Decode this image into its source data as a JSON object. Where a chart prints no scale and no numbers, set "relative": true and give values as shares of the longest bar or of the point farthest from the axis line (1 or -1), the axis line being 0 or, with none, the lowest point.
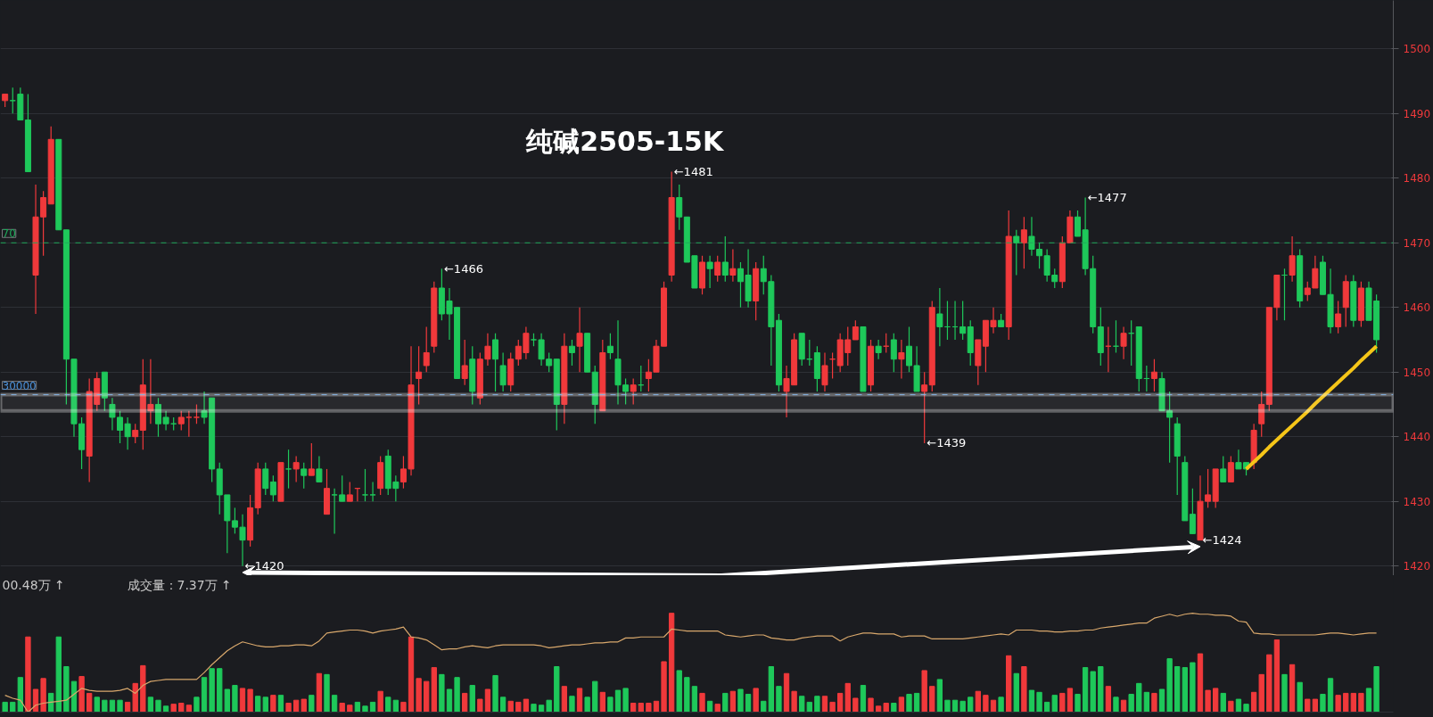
{
  "chart_data": [
    {
      "type": "candlestick",
      "title": "纯碱2505-15K",
      "categories": [
        null,
        null,
        null,
        null,
        null,
        null,
        null,
        null,
        null,
        null,
        null,
        null,
        null,
        null,
        null,
        null,
        null,
        null,
        null,
        null,
        null,
        null,
        null,
        null,
        null,
        null,
        null,
        null,
        null,
        null,
        null,
        null,
        null,
        null,
        null,
        null,
        null,
        null,
        null,
        null,
        null,
        null,
        null,
        null,
        null,
        null,
        null,
        null,
        null,
        null,
        null,
        null,
        null,
        null,
        null,
        null,
        null,
        null,
        null,
        null,
        null,
        null,
        null,
        null,
        null,
        null,
        null,
        null,
        null,
        null,
        null,
        null,
        null,
        null,
        null,
        null,
        null,
        null,
        null,
        null,
        null,
        null,
        null,
        null,
        null,
        null,
        null,
        null,
        null,
        null,
        null,
        null,
        null,
        null,
        null,
        null,
        null,
        null,
        null,
        null,
        null,
        null,
        null,
        null,
        null,
        null,
        null,
        null,
        null,
        null,
        null,
        null,
        null,
        null,
        null,
        null,
        null,
        null,
        null,
        null,
        null,
        null,
        null,
        null,
        null,
        null,
        null,
        null,
        null,
        null,
        null,
        null,
        null,
        null,
        null,
        null,
        null,
        null,
        null,
        null,
        null,
        null,
        null,
        null,
        null,
        null,
        null,
        null,
        null,
        null,
        null,
        null,
        null,
        null,
        null,
        null,
        null,
        null,
        null,
        null,
        null,
        null,
        null,
        null,
        null,
        null,
        null,
        null,
        null,
        null,
        null,
        null,
        null,
        null,
        null,
        null,
        null,
        null,
        null,
        null
      ],
      "ohlc": [
        [
          1492,
          1493,
          1491,
          1493
        ],
        [
          1492,
          1494,
          1490,
          1492
        ],
        [
          1493,
          1494,
          1489,
          1489
        ],
        [
          1489,
          1493,
          1481,
          1481
        ],
        [
          1465,
          1479,
          1459,
          1474
        ],
        [
          1474,
          1478,
          1468,
          1477
        ],
        [
          1476,
          1488,
          1476,
          1486
        ],
        [
          1486,
          1486,
          1472,
          1472
        ],
        [
          1472,
          1472,
          1445,
          1452
        ],
        [
          1452,
          1452,
          1440,
          1442
        ],
        [
          1442,
          1443,
          1435,
          1438
        ],
        [
          1437,
          1449,
          1433,
          1447
        ],
        [
          1445,
          1450,
          1444,
          1449
        ],
        [
          1450,
          1450,
          1444,
          1446
        ],
        [
          1445,
          1446,
          1441,
          1443
        ],
        [
          1443,
          1444,
          1439,
          1441
        ],
        [
          1442,
          1443,
          1438,
          1440
        ],
        [
          1440,
          1442,
          1439,
          1441
        ],
        [
          1441,
          1452,
          1438,
          1448
        ],
        [
          1444,
          1452,
          1442,
          1445
        ],
        [
          1445,
          1446,
          1440,
          1442
        ],
        [
          1443,
          1444,
          1441,
          1442
        ],
        [
          1442,
          1443,
          1441,
          1442
        ],
        [
          1442,
          1444,
          1441,
          1443
        ],
        [
          1443,
          1444,
          1440,
          1443
        ],
        [
          1443,
          1445,
          1442,
          1443
        ],
        [
          1444,
          1447,
          1442,
          1443
        ],
        [
          1446,
          1446,
          1433,
          1435
        ],
        [
          1435,
          1436,
          1428,
          1431
        ],
        [
          1431,
          1431,
          1422,
          1427
        ],
        [
          1427,
          1429,
          1425,
          1426
        ],
        [
          1426,
          1428,
          1420,
          1424
        ],
        [
          1424,
          1431,
          1423,
          1429
        ],
        [
          1429,
          1436,
          1428,
          1435
        ],
        [
          1435,
          1436,
          1431,
          1432
        ],
        [
          1433,
          1434,
          1430,
          1431
        ],
        [
          1430,
          1436,
          1430,
          1436
        ],
        [
          1435,
          1438,
          1432,
          1435
        ],
        [
          1435,
          1437,
          1433,
          1436
        ],
        [
          1435,
          1436,
          1432,
          1434
        ],
        [
          1434,
          1439,
          1434,
          1435
        ],
        [
          1435,
          1437,
          1433,
          1433
        ],
        [
          1428,
          1435,
          1428,
          1432
        ],
        [
          1431,
          1432,
          1425,
          1431
        ],
        [
          1431,
          1434,
          1430,
          1430
        ],
        [
          1430,
          1433,
          1430,
          1431
        ],
        [
          1432,
          1432,
          1430,
          1432
        ],
        [
          1431,
          1435,
          1430,
          1431
        ],
        [
          1431,
          1433,
          1430,
          1431
        ],
        [
          1432,
          1437,
          1431,
          1436
        ],
        [
          1437,
          1438,
          1431,
          1432
        ],
        [
          1433,
          1434,
          1430,
          1432
        ],
        [
          1433,
          1437,
          1432,
          1435
        ],
        [
          1435,
          1454,
          1434,
          1448
        ],
        [
          1449,
          1454,
          1445,
          1450
        ],
        [
          1451,
          1457,
          1450,
          1453
        ],
        [
          1454,
          1464,
          1453,
          1463
        ],
        [
          1463,
          1466,
          1458,
          1459
        ],
        [
          1461,
          1463,
          1455,
          1459
        ],
        [
          1460,
          1460,
          1449,
          1449
        ],
        [
          1449,
          1455,
          1448,
          1451
        ],
        [
          1452,
          1454,
          1445,
          1447
        ],
        [
          1446,
          1453,
          1445,
          1452
        ],
        [
          1452,
          1456,
          1451,
          1454
        ],
        [
          1455,
          1456,
          1447,
          1452
        ],
        [
          1451,
          1453,
          1447,
          1448
        ],
        [
          1448,
          1453,
          1447,
          1452
        ],
        [
          1452,
          1455,
          1451,
          1454
        ],
        [
          1453,
          1457,
          1452,
          1456
        ],
        [
          1455,
          1456,
          1454,
          1455
        ],
        [
          1455,
          1456,
          1451,
          1452
        ],
        [
          1452,
          1453,
          1450,
          1451
        ],
        [
          1452,
          1452,
          1441,
          1445
        ],
        [
          1445,
          1456,
          1442,
          1454
        ],
        [
          1454,
          1455,
          1451,
          1453
        ],
        [
          1454,
          1460,
          1450,
          1456
        ],
        [
          1456,
          1456,
          1450,
          1450
        ],
        [
          1450,
          1451,
          1442,
          1445
        ],
        [
          1444,
          1455,
          1444,
          1453
        ],
        [
          1454,
          1456,
          1452,
          1453
        ],
        [
          1452,
          1458,
          1445,
          1448
        ],
        [
          1448,
          1449,
          1445,
          1447
        ],
        [
          1447,
          1449,
          1445,
          1448
        ],
        [
          1448,
          1451,
          1447,
          1448
        ],
        [
          1449,
          1452,
          1447,
          1450
        ],
        [
          1450,
          1455,
          1450,
          1454
        ],
        [
          1454,
          1464,
          1454,
          1463
        ],
        [
          1465,
          1481,
          1464,
          1477
        ],
        [
          1477,
          1479,
          1472,
          1474
        ],
        [
          1474,
          1474,
          1467,
          1467
        ],
        [
          1468,
          1468,
          1463,
          1463
        ],
        [
          1463,
          1468,
          1462,
          1467
        ],
        [
          1467,
          1468,
          1463,
          1466
        ],
        [
          1465,
          1468,
          1464,
          1467
        ],
        [
          1467,
          1471,
          1464,
          1465
        ],
        [
          1465,
          1469,
          1464,
          1466
        ],
        [
          1466,
          1467,
          1460,
          1464
        ],
        [
          1465,
          1469,
          1460,
          1461
        ],
        [
          1461,
          1467,
          1458,
          1466
        ],
        [
          1466,
          1468,
          1462,
          1464
        ],
        [
          1464,
          1465,
          1451,
          1457
        ],
        [
          1458,
          1459,
          1447,
          1448
        ],
        [
          1447,
          1451,
          1443,
          1449
        ],
        [
          1448,
          1456,
          1448,
          1455
        ],
        [
          1456,
          1456,
          1451,
          1452
        ],
        [
          1452,
          1455,
          1451,
          1452
        ],
        [
          1453,
          1454,
          1447,
          1449
        ],
        [
          1448,
          1453,
          1447,
          1451
        ],
        [
          1452,
          1453,
          1449,
          1452
        ],
        [
          1451,
          1456,
          1450,
          1455
        ],
        [
          1453,
          1457,
          1451,
          1455
        ],
        [
          1455,
          1458,
          1455,
          1457
        ],
        [
          1457,
          1457,
          1447,
          1447
        ],
        [
          1448,
          1455,
          1447,
          1454
        ],
        [
          1454,
          1455,
          1452,
          1453
        ],
        [
          1454,
          1456,
          1453,
          1454
        ],
        [
          1455,
          1456,
          1450,
          1452
        ],
        [
          1452,
          1455,
          1449,
          1453
        ],
        [
          1454,
          1457,
          1450,
          1451
        ],
        [
          1451,
          1454,
          1447,
          1447
        ],
        [
          1447,
          1450,
          1439,
          1448
        ],
        [
          1448,
          1461,
          1447,
          1460
        ],
        [
          1459,
          1463,
          1454,
          1457
        ],
        [
          1457,
          1461,
          1455,
          1457
        ],
        [
          1457,
          1461,
          1455,
          1457
        ],
        [
          1457,
          1461,
          1455,
          1456
        ],
        [
          1457,
          1458,
          1451,
          1453
        ],
        [
          1451,
          1455,
          1448,
          1455
        ],
        [
          1454,
          1458,
          1450,
          1458
        ],
        [
          1457,
          1460,
          1456,
          1458
        ],
        [
          1458,
          1459,
          1457,
          1457
        ],
        [
          1457,
          1475,
          1455,
          1471
        ],
        [
          1471,
          1472,
          1465,
          1470
        ],
        [
          1470,
          1474,
          1466,
          1472
        ],
        [
          1471,
          1474,
          1468,
          1469
        ],
        [
          1469,
          1470,
          1466,
          1468
        ],
        [
          1468,
          1469,
          1464,
          1465
        ],
        [
          1465,
          1466,
          1463,
          1464
        ],
        [
          1464,
          1471,
          1463,
          1470
        ],
        [
          1470,
          1475,
          1470,
          1474
        ],
        [
          1474,
          1475,
          1471,
          1471
        ],
        [
          1472,
          1477,
          1465,
          1466
        ],
        [
          1466,
          1468,
          1456,
          1457
        ],
        [
          1457,
          1460,
          1451,
          1453
        ],
        [
          1454,
          1457,
          1450,
          1454
        ],
        [
          1454,
          1458,
          1453,
          1454
        ],
        [
          1454,
          1457,
          1452,
          1456
        ],
        [
          1456,
          1458,
          1451,
          1456
        ],
        [
          1457,
          1457,
          1447,
          1449
        ],
        [
          1449,
          1451,
          1447,
          1449
        ],
        [
          1449,
          1452,
          1447,
          1450
        ],
        [
          1449,
          1450,
          1444,
          1444
        ],
        [
          1444,
          1447,
          1436,
          1443
        ],
        [
          1442,
          1443,
          1431,
          1437
        ],
        [
          1436,
          1437,
          1427,
          1427
        ],
        [
          1428,
          1432,
          1425,
          1425
        ],
        [
          1424,
          1434,
          1424,
          1430
        ],
        [
          1430,
          1435,
          1429,
          1431
        ],
        [
          1430,
          1435,
          1429,
          1435
        ],
        [
          1435,
          1437,
          1433,
          1433
        ],
        [
          1433,
          1437,
          1433,
          1436
        ],
        [
          1436,
          1438,
          1435,
          1435
        ],
        [
          1436,
          1436,
          1434,
          1435
        ],
        [
          1436,
          1442,
          1435,
          1441
        ],
        [
          1442,
          1447,
          1440,
          1445
        ],
        [
          1445,
          1460,
          1444,
          1460
        ],
        [
          1460,
          1465,
          1458,
          1465
        ],
        [
          1465,
          1466,
          1458,
          1465
        ],
        [
          1465,
          1471,
          1464,
          1468
        ],
        [
          1468,
          1469,
          1460,
          1461
        ],
        [
          1462,
          1464,
          1461,
          1463
        ],
        [
          1463,
          1468,
          1463,
          1466
        ],
        [
          1467,
          1468,
          1462,
          1462
        ],
        [
          1462,
          1466,
          1456,
          1457
        ],
        [
          1457,
          1461,
          1456,
          1459
        ],
        [
          1460,
          1465,
          1457,
          1464
        ],
        [
          1464,
          1465,
          1457,
          1458
        ],
        [
          1458,
          1464,
          1457,
          1463
        ],
        [
          1463,
          1464,
          1458,
          1458
        ],
        [
          1461,
          1462,
          1453,
          1455
        ]
      ],
      "colors": [
        "#f0393b",
        "#1ec85a",
        "#1ec85a",
        "#1ec85a",
        "#f0393b",
        "#f0393b",
        "#f0393b",
        "#1ec85a",
        "#1ec85a",
        "#1ec85a",
        "#1ec85a",
        "#f0393b",
        "#f0393b",
        "#1ec85a",
        "#1ec85a",
        "#1ec85a",
        "#1ec85a",
        "#f0393b",
        "#f0393b",
        "#f0393b",
        "#1ec85a",
        "#1ec85a",
        "#1ec85a",
        "#f0393b",
        "#f0393b",
        "#f0393b",
        "#1ec85a",
        "#1ec85a",
        "#1ec85a",
        "#1ec85a",
        "#1ec85a",
        "#1ec85a",
        "#f0393b",
        "#f0393b",
        "#1ec85a",
        "#1ec85a",
        "#f0393b",
        "#1ec85a",
        "#f0393b",
        "#1ec85a",
        "#f0393b",
        "#1ec85a",
        "#f0393b",
        "#1ec85a",
        "#1ec85a",
        "#f0393b",
        "#f0393b",
        "#1ec85a",
        "#1ec85a",
        "#f0393b",
        "#1ec85a",
        "#1ec85a",
        "#f0393b",
        "#f0393b",
        "#f0393b",
        "#f0393b",
        "#f0393b",
        "#1ec85a",
        "#1ec85a",
        "#1ec85a",
        "#f0393b",
        "#1ec85a",
        "#f0393b",
        "#f0393b",
        "#1ec85a",
        "#1ec85a",
        "#f0393b",
        "#f0393b",
        "#f0393b",
        "#1ec85a",
        "#1ec85a",
        "#1ec85a",
        "#1ec85a",
        "#f0393b",
        "#1ec85a",
        "#f0393b",
        "#1ec85a",
        "#1ec85a",
        "#f0393b",
        "#1ec85a",
        "#1ec85a",
        "#1ec85a",
        "#f0393b",
        "#1ec85a",
        "#f0393b",
        "#f0393b",
        "#f0393b",
        "#f0393b",
        "#1ec85a",
        "#1ec85a",
        "#1ec85a",
        "#f0393b",
        "#1ec85a",
        "#f0393b",
        "#1ec85a",
        "#f0393b",
        "#1ec85a",
        "#1ec85a",
        "#f0393b",
        "#1ec85a",
        "#1ec85a",
        "#1ec85a",
        "#f0393b",
        "#f0393b",
        "#1ec85a",
        "#1ec85a",
        "#1ec85a",
        "#f0393b",
        "#f0393b",
        "#f0393b",
        "#f0393b",
        "#f0393b",
        "#1ec85a",
        "#f0393b",
        "#1ec85a",
        "#f0393b",
        "#1ec85a",
        "#f0393b",
        "#1ec85a",
        "#1ec85a",
        "#f0393b",
        "#f0393b",
        "#1ec85a",
        "#1ec85a",
        "#1ec85a",
        "#1ec85a",
        "#1ec85a",
        "#f0393b",
        "#f0393b",
        "#f0393b",
        "#1ec85a",
        "#f0393b",
        "#1ec85a",
        "#f0393b",
        "#1ec85a",
        "#1ec85a",
        "#1ec85a",
        "#1ec85a",
        "#f0393b",
        "#f0393b",
        "#1ec85a",
        "#1ec85a",
        "#1ec85a",
        "#1ec85a",
        "#f0393b",
        "#1ec85a",
        "#f0393b",
        "#1ec85a",
        "#1ec85a",
        "#1ec85a",
        "#f0393b",
        "#1ec85a",
        "#1ec85a",
        "#1ec85a",
        "#1ec85a",
        "#1ec85a",
        "#f0393b",
        "#f0393b",
        "#f0393b",
        "#1ec85a",
        "#f0393b",
        "#1ec85a",
        "#1ec85a",
        "#f0393b",
        "#f0393b",
        "#f0393b",
        "#f0393b",
        "#1ec85a",
        "#f0393b",
        "#1ec85a",
        "#f0393b",
        "#f0393b",
        "#1ec85a",
        "#1ec85a",
        "#f0393b",
        "#f0393b",
        "#1ec85a",
        "#f0393b",
        "#1ec85a",
        "#1ec85a"
      ],
      "series": [
        {
          "type": "line",
          "color": "#f5c518",
          "values": [
            null,
            null,
            null,
            null,
            null,
            null,
            null,
            null,
            null,
            null,
            null,
            null,
            null,
            null,
            null,
            null,
            null,
            null,
            null,
            null,
            null,
            null,
            null,
            null,
            null,
            null,
            null,
            null,
            null,
            null,
            null,
            null,
            null,
            null,
            null,
            null,
            null,
            null,
            null,
            null,
            null,
            null,
            null,
            null,
            null,
            null,
            null,
            null,
            null,
            null,
            null,
            null,
            null,
            null,
            null,
            null,
            null,
            null,
            null,
            null,
            null,
            null,
            null,
            null,
            null,
            null,
            null,
            null,
            null,
            null,
            null,
            null,
            null,
            null,
            null,
            null,
            null,
            null,
            null,
            null,
            null,
            null,
            null,
            null,
            null,
            null,
            null,
            null,
            null,
            null,
            null,
            null,
            null,
            null,
            null,
            null,
            null,
            null,
            null,
            null,
            null,
            null,
            null,
            null,
            null,
            null,
            null,
            null,
            null,
            null,
            null,
            null,
            null,
            null,
            null,
            null,
            null,
            null,
            null,
            null,
            null,
            null,
            null,
            null,
            null,
            null,
            null,
            null,
            null,
            null,
            null,
            null,
            null,
            null,
            null,
            null,
            null,
            null,
            null,
            null,
            null,
            null,
            null,
            null,
            null,
            null,
            null,
            null,
            null,
            null,
            null,
            null,
            null,
            null,
            null,
            null,
            null,
            null,
            null,
            null,
            null,
            null,
            1435,
            1436.1,
            1437.2,
            1438.4,
            1439.5,
            1440.6,
            1441.7,
            1442.8,
            1443.9,
            1445.1,
            1446.2,
            1447.3,
            1448.4,
            1449.5,
            1450.6,
            1451.8,
            1452.9,
            1454
          ]
        }
      ],
      "ylim": [
        1418.5,
        1507.5
      ],
      "yticks": [
        1420,
        1430,
        1440,
        1450,
        1460,
        1470,
        1480,
        1490,
        1500
      ],
      "grid": "y",
      "tick_labels": "y",
      "ref_lines": [
        {
          "axis": "y",
          "value": 1470,
          "color": "#1ea85a",
          "line_style": "dashed"
        },
        {
          "axis": "y",
          "value": 1446.5,
          "color": "#4a90d9",
          "line_style": "dashed"
        }
      ],
      "bands": [
        {
          "axis": "y",
          "from": 1444,
          "to": 1446.5,
          "color": "#ffffff"
        }
      ],
      "annotations": [
        "70",
        "30000",
        "←1481",
        "←1466",
        "←1477",
        "←1439",
        "←1424",
        "←1420"
      ]
    },
    {
      "type": "bar",
      "relative": true,
      "tick_labels": false,
      "categories": [
        null,
        null,
        null,
        null,
        null,
        null,
        null,
        null,
        null,
        null,
        null,
        null,
        null,
        null,
        null,
        null,
        null,
        null,
        null,
        null,
        null,
        null,
        null,
        null,
        null,
        null,
        null,
        null,
        null,
        null,
        null,
        null,
        null,
        null,
        null,
        null,
        null,
        null,
        null,
        null,
        null,
        null,
        null,
        null,
        null,
        null,
        null,
        null,
        null,
        null,
        null,
        null,
        null,
        null,
        null,
        null,
        null,
        null,
        null,
        null,
        null,
        null,
        null,
        null,
        null,
        null,
        null,
        null,
        null,
        null,
        null,
        null,
        null,
        null,
        null,
        null,
        null,
        null,
        null,
        null,
        null,
        null,
        null,
        null,
        null,
        null,
        null,
        null,
        null,
        null,
        null,
        null,
        null,
        null,
        null,
        null,
        null,
        null,
        null,
        null,
        null,
        null,
        null,
        null,
        null,
        null,
        null,
        null,
        null,
        null,
        null,
        null,
        null,
        null,
        null,
        null,
        null,
        null,
        null,
        null,
        null,
        null,
        null,
        null,
        null,
        null,
        null,
        null,
        null,
        null,
        null,
        null,
        null,
        null,
        null,
        null,
        null,
        null,
        null,
        null,
        null,
        null,
        null,
        null,
        null,
        null,
        null,
        null,
        null,
        null,
        null,
        null,
        null,
        null,
        null,
        null,
        null,
        null,
        null,
        null,
        null,
        null,
        null,
        null,
        null,
        null,
        null,
        null,
        null,
        null,
        null,
        null,
        null,
        null,
        null,
        null,
        null,
        null,
        null,
        null
      ],
      "series": [
        {
          "type": "bar",
          "values": [
            0.1,
            0.1,
            0.35,
            0.76,
            0.23,
            0.34,
            0.19,
            0.76,
            0.46,
            0.31,
            0.36,
            0.19,
            0.15,
            0.12,
            0.12,
            0.12,
            0.1,
            0.29,
            0.47,
            0.15,
            0.12,
            0.06,
            0.08,
            0.09,
            0.07,
            0.15,
            0.35,
            0.44,
            0.44,
            0.23,
            0.27,
            0.24,
            0.23,
            0.16,
            0.15,
            0.17,
            0.17,
            0.09,
            0.12,
            0.13,
            0.17,
            0.39,
            0.38,
            0.17,
            0.09,
            0.07,
            0.1,
            0.06,
            0.1,
            0.21,
            0.15,
            0.12,
            0.1,
            0.76,
            0.34,
            0.31,
            0.45,
            0.38,
            0.23,
            0.35,
            0.19,
            0.27,
            0.13,
            0.23,
            0.37,
            0.15,
            0.11,
            0.1,
            0.13,
            0.08,
            0.07,
            0.12,
            0.46,
            0.26,
            0.16,
            0.24,
            0.15,
            0.31,
            0.2,
            0.15,
            0.22,
            0.24,
            0.09,
            0.09,
            0.09,
            0.11,
            0.51,
            1.0,
            0.42,
            0.35,
            0.26,
            0.19,
            0.11,
            0.08,
            0.19,
            0.21,
            0.23,
            0.18,
            0.24,
            0.11,
            0.46,
            0.26,
            0.39,
            0.21,
            0.16,
            0.1,
            0.16,
            0.16,
            0.1,
            0.19,
            0.29,
            0.14,
            0.27,
            0.14,
            0.06,
            0.09,
            0.09,
            0.15,
            0.18,
            0.19,
            0.42,
            0.26,
            0.33,
            0.12,
            0.12,
            0.11,
            0.15,
            0.21,
            0.17,
            0.12,
            0.15,
            0.57,
            0.39,
            0.46,
            0.22,
            0.2,
            0.1,
            0.17,
            0.19,
            0.24,
            0.18,
            0.45,
            0.41,
            0.46,
            0.26,
            0.15,
            0.12,
            0.18,
            0.29,
            0.2,
            0.19,
            0.23,
            0.54,
            0.46,
            0.45,
            0.5,
            0.59,
            0.22,
            0.24,
            0.19,
            0.11,
            0.13,
            0.08,
            0.2,
            0.38,
            0.58,
            0.73,
            0.38,
            0.48,
            0.3,
            0.13,
            0.13,
            0.18,
            0.34,
            0.17,
            0.19,
            0.19,
            0.19,
            0.24,
            0.46
          ],
          "colors": [
            "#1ec85a",
            "#1ec85a",
            "#1ec85a",
            "#f0393b",
            "#f0393b",
            "#f0393b",
            "#1ec85a",
            "#1ec85a",
            "#1ec85a",
            "#1ec85a",
            "#f0393b",
            "#f0393b",
            "#1ec85a",
            "#1ec85a",
            "#1ec85a",
            "#1ec85a",
            "#f0393b",
            "#f0393b",
            "#f0393b",
            "#1ec85a",
            "#1ec85a",
            "#1ec85a",
            "#f0393b",
            "#f0393b",
            "#f0393b",
            "#1ec85a",
            "#1ec85a",
            "#1ec85a",
            "#1ec85a",
            "#1ec85a",
            "#1ec85a",
            "#f0393b",
            "#f0393b",
            "#1ec85a",
            "#1ec85a",
            "#f0393b",
            "#1ec85a",
            "#f0393b",
            "#f0393b",
            "#f0393b",
            "#1ec85a",
            "#f0393b",
            "#1ec85a",
            "#1ec85a",
            "#f0393b",
            "#f0393b",
            "#1ec85a",
            "#1ec85a",
            "#1ec85a",
            "#f0393b",
            "#1ec85a",
            "#1ec85a",
            "#f0393b",
            "#f0393b",
            "#f0393b",
            "#f0393b",
            "#f0393b",
            "#1ec85a",
            "#1ec85a",
            "#1ec85a",
            "#f0393b",
            "#1ec85a",
            "#f0393b",
            "#f0393b",
            "#1ec85a",
            "#1ec85a",
            "#f0393b",
            "#f0393b",
            "#f0393b",
            "#1ec85a",
            "#1ec85a",
            "#1ec85a",
            "#1ec85a",
            "#f0393b",
            "#1ec85a",
            "#f0393b",
            "#1ec85a",
            "#1ec85a",
            "#f0393b",
            "#1ec85a",
            "#1ec85a",
            "#1ec85a",
            "#f0393b",
            "#f0393b",
            "#f0393b",
            "#f0393b",
            "#f0393b",
            "#f0393b",
            "#1ec85a",
            "#1ec85a",
            "#1ec85a",
            "#f0393b",
            "#1ec85a",
            "#f0393b",
            "#1ec85a",
            "#f0393b",
            "#1ec85a",
            "#1ec85a",
            "#f0393b",
            "#1ec85a",
            "#1ec85a",
            "#1ec85a",
            "#f0393b",
            "#f0393b",
            "#1ec85a",
            "#1ec85a",
            "#1ec85a",
            "#f0393b",
            "#f0393b",
            "#f0393b",
            "#f0393b",
            "#f0393b",
            "#1ec85a",
            "#f0393b",
            "#f0393b",
            "#f0393b",
            "#1ec85a",
            "#f0393b",
            "#1ec85a",
            "#1ec85a",
            "#f0393b",
            "#f0393b",
            "#1ec85a",
            "#1ec85a",
            "#1ec85a",
            "#1ec85a",
            "#1ec85a",
            "#f0393b",
            "#f0393b",
            "#f0393b",
            "#1ec85a",
            "#f0393b",
            "#1ec85a",
            "#f0393b",
            "#1ec85a",
            "#1ec85a",
            "#1ec85a",
            "#1ec85a",
            "#f0393b",
            "#f0393b",
            "#1ec85a",
            "#1ec85a",
            "#1ec85a",
            "#1ec85a",
            "#f0393b",
            "#1ec85a",
            "#f0393b",
            "#1ec85a",
            "#1ec85a",
            "#1ec85a",
            "#f0393b",
            "#1ec85a",
            "#1ec85a",
            "#1ec85a",
            "#1ec85a",
            "#1ec85a",
            "#f0393b",
            "#f0393b",
            "#f0393b",
            "#1ec85a",
            "#f0393b",
            "#1ec85a",
            "#1ec85a",
            "#f0393b",
            "#f0393b",
            "#f0393b",
            "#f0393b",
            "#1ec85a",
            "#f0393b",
            "#1ec85a",
            "#f0393b",
            "#f0393b",
            "#1ec85a",
            "#1ec85a",
            "#f0393b",
            "#f0393b",
            "#f0393b",
            "#f0393b",
            "#1ec85a",
            "#1ec85a"
          ]
        },
        {
          "type": "line",
          "color": "#d9a86c",
          "values": [
            0.17,
            0.14,
            0.12,
            0,
            0.07,
            0.09,
            0.1,
            0.11,
            0.12,
            0.18,
            0.24,
            0.22,
            0.21,
            0.21,
            0.21,
            0.22,
            0.24,
            0.19,
            0.27,
            0.31,
            0.32,
            0.33,
            0.33,
            0.33,
            0.33,
            0.33,
            0.4,
            0.48,
            0.55,
            0.62,
            0.67,
            0.71,
            0.69,
            0.67,
            0.66,
            0.66,
            0.67,
            0.67,
            0.68,
            0.68,
            0.67,
            0.72,
            0.8,
            0.81,
            0.82,
            0.83,
            0.83,
            0.82,
            0.8,
            0.82,
            0.83,
            0.84,
            0.86,
            0.76,
            0.75,
            0.73,
            0.68,
            0.63,
            0.64,
            0.64,
            0.66,
            0.67,
            0.66,
            0.65,
            0.67,
            0.68,
            0.68,
            0.68,
            0.68,
            0.68,
            0.67,
            0.65,
            0.66,
            0.67,
            0.68,
            0.68,
            0.69,
            0.7,
            0.7,
            0.71,
            0.71,
            0.75,
            0.75,
            0.76,
            0.76,
            0.76,
            0.76,
            0.84,
            0.83,
            0.82,
            0.82,
            0.82,
            0.82,
            0.82,
            0.78,
            0.77,
            0.76,
            0.77,
            0.78,
            0.78,
            0.75,
            0.74,
            0.73,
            0.73,
            0.75,
            0.76,
            0.77,
            0.77,
            0.77,
            0.72,
            0.76,
            0.78,
            0.8,
            0.8,
            0.79,
            0.79,
            0.79,
            0.76,
            0.77,
            0.77,
            0.77,
            0.74,
            0.74,
            0.74,
            0.74,
            0.74,
            0.75,
            0.76,
            0.77,
            0.78,
            0.79,
            0.78,
            0.83,
            0.83,
            0.83,
            0.82,
            0.82,
            0.81,
            0.81,
            0.82,
            0.82,
            0.83,
            0.83,
            0.85,
            0.86,
            0.87,
            0.88,
            0.89,
            0.9,
            0.9,
            0.95,
            0.97,
            0.99,
            0.97,
            0.99,
            1.0,
            0.99,
            0.99,
            0.98,
            0.98,
            0.97,
            0.92,
            0.91,
            0.8,
            0.79,
            0.79,
            0.78,
            0.78,
            0.78,
            0.78,
            0.78,
            0.78,
            0.79,
            0.8,
            0.8,
            0.79,
            0.78,
            0.79,
            0.8,
            0.8
          ]
        }
      ],
      "annotations": [
        "00.48万 ↑",
        "成交量：7.37万 ↑"
      ]
    }
  ]
}
